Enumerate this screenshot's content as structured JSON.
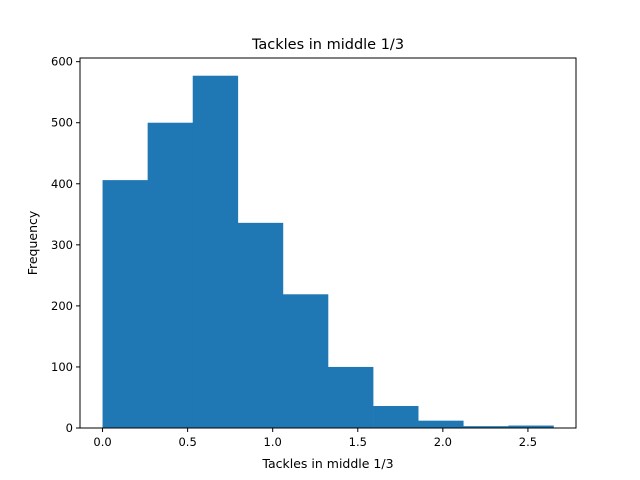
{
  "chart_data": {
    "type": "bar",
    "title": "Tackles in middle 1/3",
    "xlabel": "Tackles in middle 1/3",
    "ylabel": "Frequency",
    "bin_edges": [
      0.0,
      0.265,
      0.53,
      0.795,
      1.06,
      1.325,
      1.59,
      1.855,
      2.12,
      2.385,
      2.65
    ],
    "values": [
      406,
      500,
      577,
      336,
      219,
      100,
      36,
      12,
      3,
      4
    ],
    "xlim": [
      -0.1325,
      2.7825
    ],
    "ylim": [
      0,
      606
    ],
    "xticks": [
      0.0,
      0.5,
      1.0,
      1.5,
      2.0,
      2.5
    ],
    "xtick_labels": [
      "0.0",
      "0.5",
      "1.0",
      "1.5",
      "2.0",
      "2.5"
    ],
    "yticks": [
      0,
      100,
      200,
      300,
      400,
      500,
      600
    ],
    "ytick_labels": [
      "0",
      "100",
      "200",
      "300",
      "400",
      "500",
      "600"
    ],
    "bar_color": "#1f77b4",
    "grid": false,
    "legend": "none"
  }
}
